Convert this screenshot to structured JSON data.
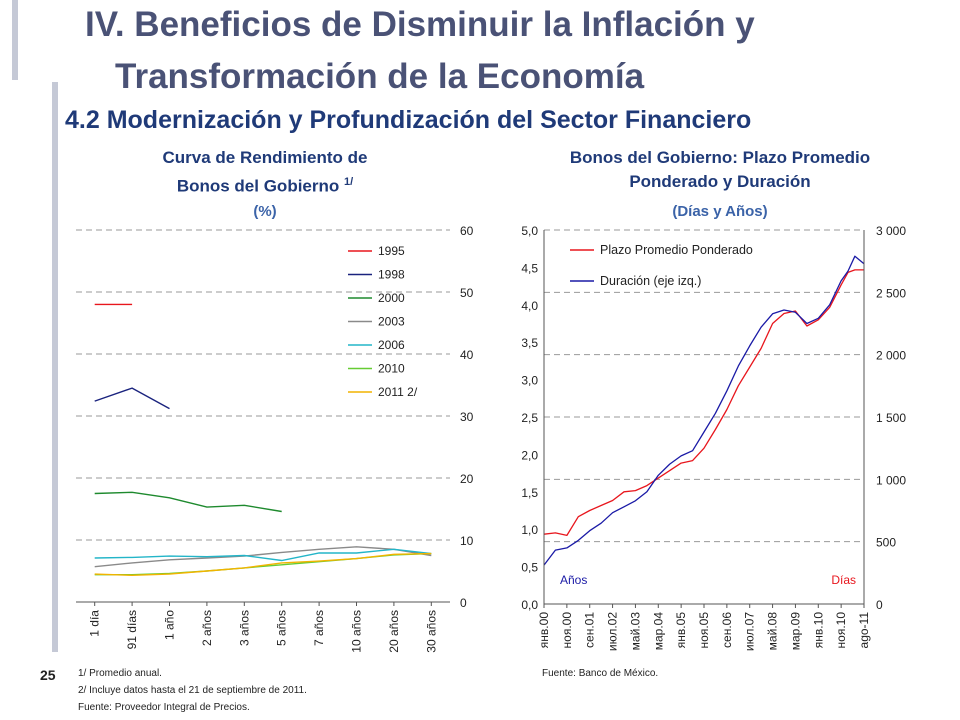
{
  "slide": {
    "title_line1": "IV. Beneficios de Disminuir la Inflación y",
    "title_line2": "Transformación de la Economía",
    "subtitle": "4.2 Modernización y Profundización del Sector Financiero",
    "page_number": "25"
  },
  "left_chart_header": {
    "title_line1": "Curva de Rendimiento de",
    "title_line2": "Bonos del Gobierno",
    "title_superscript": "1/",
    "unit": "(%)"
  },
  "right_chart_header": {
    "title_line1": "Bonos del Gobierno: Plazo Promedio",
    "title_line2": "Ponderado y Duración",
    "unit": "(Días y Años)"
  },
  "notes": {
    "left_note1": "1/ Promedio anual.",
    "left_note2": "2/ Incluye datos hasta el 21 de septiembre de 2011.",
    "left_source": "Fuente: Proveedor Integral de Precios.",
    "right_source": "Fuente: Banco de México."
  },
  "colors": {
    "title": "#4a5276",
    "subtitle": "#1f3a78",
    "s1995": "#e8161d",
    "s1998": "#1a237e",
    "s2000": "#1e8a2e",
    "s2003": "#8a8a8a",
    "s2006": "#23b5c8",
    "s2010": "#66cc33",
    "s2011": "#f2b400",
    "plazo": "#e8161d",
    "duracion": "#1a1aa6"
  },
  "chart_data": [
    {
      "type": "line",
      "title": "Curva de Rendimiento de Bonos del Gobierno 1/ (%)",
      "categories": [
        "1 día",
        "91 días",
        "1 año",
        "2 años",
        "3 años",
        "5 años",
        "7 años",
        "10 años",
        "20 años",
        "30 años"
      ],
      "y_axis": "right",
      "ylim": [
        0,
        60
      ],
      "yticks": [
        0,
        10,
        20,
        30,
        40,
        50,
        60
      ],
      "grid": "dashed horizontal",
      "legend_position": "top-right",
      "series": [
        {
          "name": "1995",
          "color": "#e8161d",
          "values": [
            48.0,
            48.0,
            null,
            null,
            null,
            null,
            null,
            null,
            null,
            null
          ]
        },
        {
          "name": "1998",
          "color": "#1a237e",
          "values": [
            32.4,
            34.5,
            31.2,
            null,
            null,
            null,
            null,
            null,
            null,
            null
          ]
        },
        {
          "name": "2000",
          "color": "#1e8a2e",
          "values": [
            17.5,
            17.7,
            16.8,
            15.3,
            15.6,
            14.6,
            null,
            null,
            null,
            null
          ]
        },
        {
          "name": "2003",
          "color": "#8a8a8a",
          "values": [
            5.7,
            6.3,
            6.8,
            7.1,
            7.4,
            8.0,
            8.5,
            8.9,
            8.5,
            7.5
          ]
        },
        {
          "name": "2006",
          "color": "#23b5c8",
          "values": [
            7.1,
            7.2,
            7.4,
            7.3,
            7.5,
            6.7,
            7.9,
            7.9,
            8.5,
            7.8
          ]
        },
        {
          "name": "2010",
          "color": "#66cc33",
          "values": [
            4.4,
            4.4,
            4.6,
            5.0,
            5.5,
            6.0,
            6.5,
            7.0,
            7.6,
            7.8
          ]
        },
        {
          "name": "2011 2/",
          "color": "#f2b400",
          "values": [
            4.5,
            4.3,
            4.5,
            5.0,
            5.5,
            6.3,
            6.6,
            7.0,
            7.7,
            7.8
          ]
        }
      ]
    },
    {
      "type": "line",
      "title": "Bonos del Gobierno: Plazo Promedio Ponderado y Duración (Días y Años)",
      "x_labels": [
        "янв.00",
        "ноя.00",
        "сен.01",
        "июл.02",
        "май.03",
        "мар.04",
        "янв.05",
        "ноя.05",
        "сен.06",
        "июл.07",
        "май.08",
        "мар.09",
        "янв.10",
        "ноя.10",
        "ago-11"
      ],
      "left_axis": {
        "label": "Años",
        "ylim": [
          0,
          5
        ],
        "ticks": [
          "0,0",
          "0,5",
          "1,0",
          "1,5",
          "2,0",
          "2,5",
          "3,0",
          "3,5",
          "4,0",
          "4,5",
          "5,0"
        ]
      },
      "right_axis": {
        "label": "Días",
        "ylim": [
          0,
          3000
        ],
        "ticks": [
          "0",
          "500",
          "1 000",
          "1 500",
          "2 000",
          "2 500",
          "3 000"
        ]
      },
      "grid": "dashed horizontal",
      "legend_position": "top-left",
      "series": [
        {
          "name": "Plazo Promedio Ponderado",
          "axis": "right",
          "color": "#e8161d",
          "x": [
            0,
            0.5,
            1,
            1.5,
            2,
            2.5,
            3,
            3.5,
            4,
            4.5,
            5,
            5.5,
            6,
            6.5,
            7,
            7.5,
            8,
            8.5,
            9,
            9.5,
            10,
            10.5,
            11,
            11.5,
            12,
            12.5,
            13,
            13.3,
            13.6,
            14
          ],
          "values": [
            560,
            570,
            550,
            700,
            750,
            790,
            830,
            900,
            910,
            950,
            1010,
            1070,
            1130,
            1150,
            1250,
            1400,
            1560,
            1750,
            1900,
            2050,
            2250,
            2330,
            2350,
            2230,
            2280,
            2380,
            2560,
            2660,
            2680,
            2680
          ]
        },
        {
          "name": "Duración (eje izq.)",
          "axis": "left",
          "color": "#1a1aa6",
          "x": [
            0,
            0.5,
            1,
            1.5,
            2,
            2.5,
            3,
            3.5,
            4,
            4.5,
            5,
            5.5,
            6,
            6.5,
            7,
            7.5,
            8,
            8.5,
            9,
            9.5,
            10,
            10.5,
            11,
            11.5,
            12,
            12.5,
            13,
            13.3,
            13.6,
            14
          ],
          "values": [
            0.52,
            0.72,
            0.75,
            0.85,
            0.98,
            1.08,
            1.22,
            1.3,
            1.38,
            1.5,
            1.72,
            1.87,
            1.98,
            2.05,
            2.3,
            2.55,
            2.85,
            3.18,
            3.45,
            3.7,
            3.88,
            3.93,
            3.9,
            3.75,
            3.82,
            4.0,
            4.32,
            4.45,
            4.65,
            4.55
          ]
        }
      ]
    }
  ]
}
